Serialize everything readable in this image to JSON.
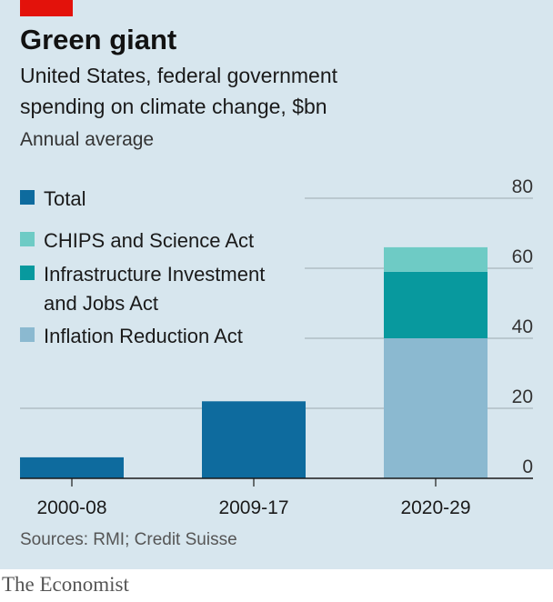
{
  "header": {
    "title": "Green giant",
    "subtitle_line1": "United States, federal government",
    "subtitle_line2": "spending on climate change, $bn",
    "subtitle_line3": "Annual average"
  },
  "footer": {
    "source": "Sources: RMI; Credit Suisse",
    "brand": "The Economist"
  },
  "legend": [
    {
      "label": "Total",
      "color": "#0e6b9e"
    },
    {
      "label": "CHIPS and Science Act",
      "color": "#6ecbc5"
    },
    {
      "label_line1": "Infrastructure Investment",
      "label_line2": "and Jobs Act",
      "color": "#08999e"
    },
    {
      "label": "Inflation Reduction Act",
      "color": "#8bb9d0"
    }
  ],
  "chart_data": {
    "type": "bar",
    "stacked": true,
    "categories": [
      "2000-08",
      "2009-17",
      "2020-29"
    ],
    "series": [
      {
        "name": "Total",
        "color": "#0e6b9e",
        "values": [
          6,
          22,
          0
        ]
      },
      {
        "name": "Inflation Reduction Act",
        "color": "#8bb9d0",
        "values": [
          0,
          0,
          40
        ]
      },
      {
        "name": "Infrastructure Investment and Jobs Act",
        "color": "#08999e",
        "values": [
          0,
          0,
          19
        ]
      },
      {
        "name": "CHIPS and Science Act",
        "color": "#6ecbc5",
        "values": [
          0,
          0,
          7
        ]
      }
    ],
    "ylim": [
      0,
      80
    ],
    "yticks": [
      0,
      20,
      40,
      60,
      80
    ],
    "ytick_labels": [
      "0",
      "20",
      "40",
      "60",
      "80"
    ],
    "y_axis_side": "right",
    "grid": true
  }
}
